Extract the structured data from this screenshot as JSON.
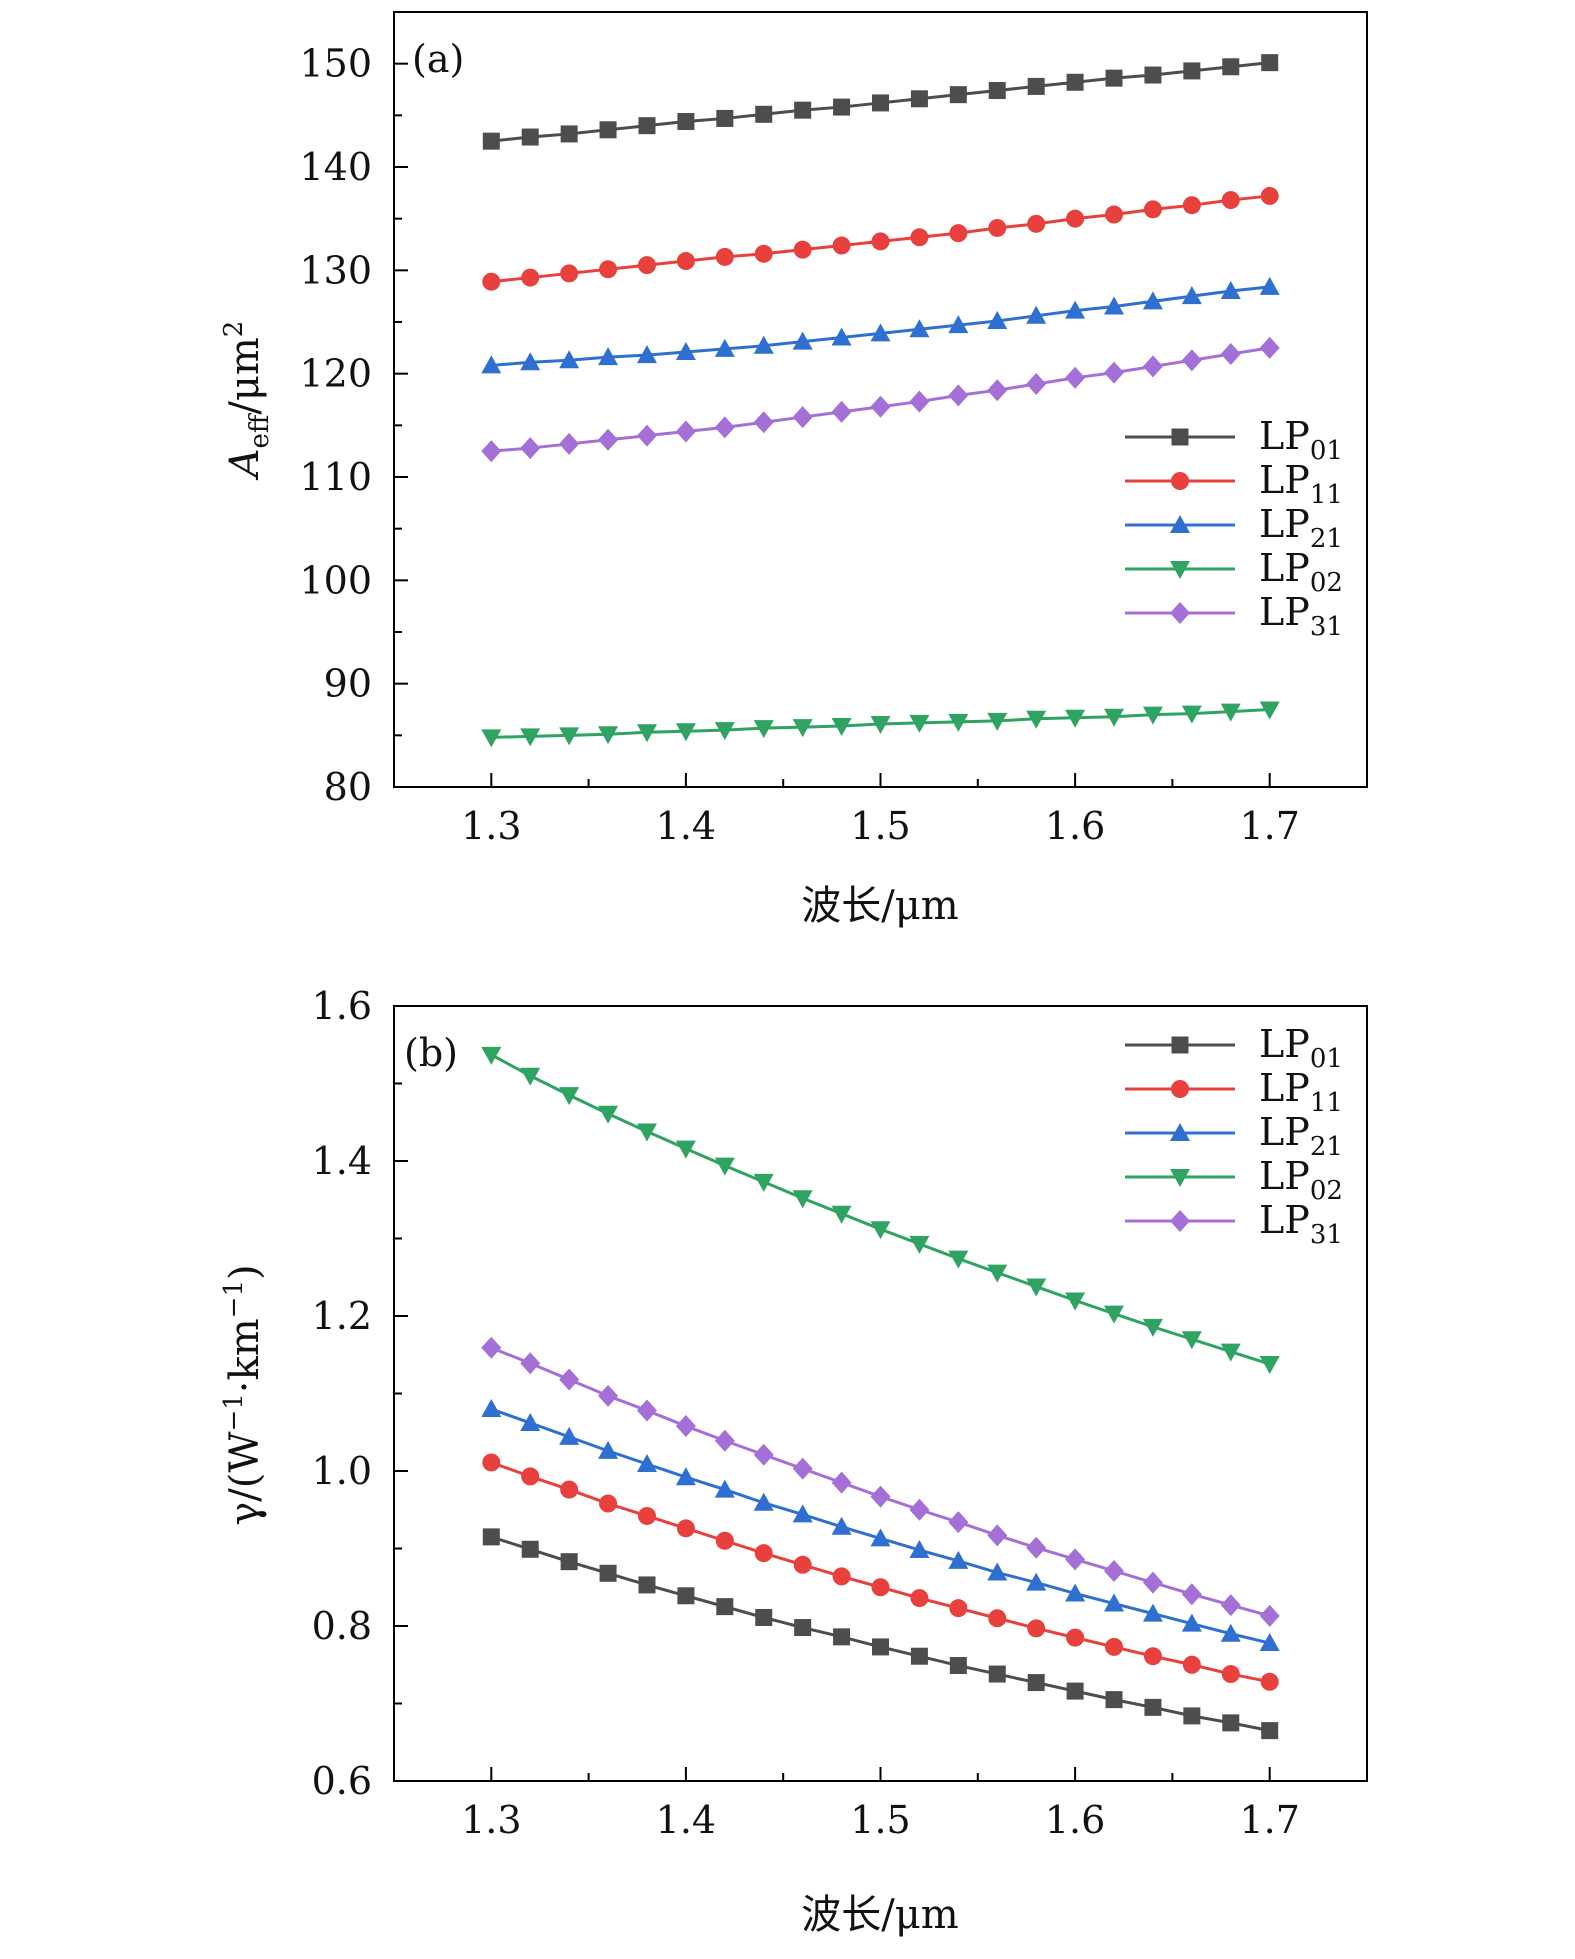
{
  "chart_data": [
    {
      "type": "line",
      "panel_label": "(a)",
      "xlabel": "波长/μm",
      "ylabel_main": "A",
      "ylabel_sub": "eff",
      "ylabel_tail": "/μm",
      "ylabel_sup": "2",
      "xlim": [
        1.25,
        1.75
      ],
      "ylim": [
        80,
        155
      ],
      "xticks": [
        "1.3",
        "1.4",
        "1.5",
        "1.6",
        "1.7"
      ],
      "xtick_values": [
        1.3,
        1.4,
        1.5,
        1.6,
        1.7
      ],
      "yticks": [
        "80",
        "90",
        "100",
        "110",
        "120",
        "130",
        "140",
        "150"
      ],
      "ytick_values": [
        80,
        90,
        100,
        110,
        120,
        130,
        140,
        150
      ],
      "legend_position": "right-middle",
      "x": [
        1.3,
        1.32,
        1.34,
        1.36,
        1.38,
        1.4,
        1.42,
        1.44,
        1.46,
        1.48,
        1.5,
        1.52,
        1.54,
        1.56,
        1.58,
        1.6,
        1.62,
        1.64,
        1.66,
        1.68,
        1.7
      ],
      "series": [
        {
          "name": "LP",
          "sub": "01",
          "color": "#4d4d4d",
          "marker": "square",
          "values": [
            142.5,
            142.9,
            143.2,
            143.6,
            144.0,
            144.4,
            144.7,
            145.1,
            145.5,
            145.8,
            146.2,
            146.6,
            147.0,
            147.4,
            147.8,
            148.2,
            148.6,
            148.9,
            149.3,
            149.7,
            150.1
          ]
        },
        {
          "name": "LP",
          "sub": "11",
          "color": "#e8403c",
          "marker": "circle",
          "values": [
            128.9,
            129.3,
            129.7,
            130.1,
            130.5,
            130.9,
            131.3,
            131.6,
            132.0,
            132.4,
            132.8,
            133.2,
            133.6,
            134.1,
            134.5,
            135.0,
            135.4,
            135.9,
            136.3,
            136.8,
            137.2
          ]
        },
        {
          "name": "LP",
          "sub": "21",
          "color": "#2f6fd1",
          "marker": "triangle-up",
          "values": [
            120.8,
            121.1,
            121.3,
            121.6,
            121.8,
            122.1,
            122.4,
            122.7,
            123.1,
            123.5,
            123.9,
            124.3,
            124.7,
            125.1,
            125.6,
            126.1,
            126.5,
            127.0,
            127.5,
            128.0,
            128.4
          ]
        },
        {
          "name": "LP",
          "sub": "02",
          "color": "#2fa362",
          "marker": "triangle-down",
          "values": [
            84.8,
            84.9,
            85.0,
            85.1,
            85.3,
            85.4,
            85.5,
            85.7,
            85.8,
            85.9,
            86.1,
            86.2,
            86.3,
            86.4,
            86.6,
            86.7,
            86.8,
            87.0,
            87.1,
            87.3,
            87.5
          ]
        },
        {
          "name": "LP",
          "sub": "31",
          "color": "#a46fd6",
          "marker": "diamond",
          "values": [
            112.5,
            112.8,
            113.2,
            113.6,
            114.0,
            114.4,
            114.8,
            115.3,
            115.8,
            116.3,
            116.8,
            117.3,
            117.9,
            118.4,
            119.0,
            119.6,
            120.1,
            120.7,
            121.3,
            121.9,
            122.5
          ]
        }
      ]
    },
    {
      "type": "line",
      "panel_label": "(b)",
      "xlabel": "波长/μm",
      "ylabel_main": "γ/(W",
      "ylabel_sup1": "−1",
      "ylabel_mid": "·km",
      "ylabel_sup2": "−1",
      "ylabel_tail": ")",
      "xlim": [
        1.25,
        1.75
      ],
      "ylim": [
        0.6,
        1.6
      ],
      "xticks": [
        "1.3",
        "1.4",
        "1.5",
        "1.6",
        "1.7"
      ],
      "xtick_values": [
        1.3,
        1.4,
        1.5,
        1.6,
        1.7
      ],
      "yticks": [
        "0.6",
        "0.8",
        "1.0",
        "1.2",
        "1.4",
        "1.6"
      ],
      "ytick_values": [
        0.6,
        0.8,
        1.0,
        1.2,
        1.4,
        1.6
      ],
      "legend_position": "top-right",
      "x": [
        1.3,
        1.32,
        1.34,
        1.36,
        1.38,
        1.4,
        1.42,
        1.44,
        1.46,
        1.48,
        1.5,
        1.52,
        1.54,
        1.56,
        1.58,
        1.6,
        1.62,
        1.64,
        1.66,
        1.68,
        1.7
      ],
      "series": [
        {
          "name": "LP",
          "sub": "01",
          "color": "#4d4d4d",
          "marker": "square",
          "values": [
            0.915,
            0.899,
            0.883,
            0.868,
            0.853,
            0.839,
            0.825,
            0.811,
            0.798,
            0.786,
            0.773,
            0.761,
            0.749,
            0.738,
            0.727,
            0.716,
            0.705,
            0.695,
            0.684,
            0.675,
            0.665
          ]
        },
        {
          "name": "LP",
          "sub": "11",
          "color": "#e8403c",
          "marker": "circle",
          "values": [
            1.011,
            0.993,
            0.976,
            0.958,
            0.942,
            0.926,
            0.91,
            0.894,
            0.879,
            0.864,
            0.85,
            0.836,
            0.823,
            0.81,
            0.797,
            0.785,
            0.773,
            0.761,
            0.75,
            0.738,
            0.728
          ]
        },
        {
          "name": "LP",
          "sub": "21",
          "color": "#2f6fd1",
          "marker": "triangle-up",
          "values": [
            1.08,
            1.062,
            1.044,
            1.026,
            1.009,
            0.992,
            0.976,
            0.959,
            0.944,
            0.928,
            0.913,
            0.898,
            0.884,
            0.869,
            0.856,
            0.842,
            0.829,
            0.816,
            0.803,
            0.79,
            0.778
          ]
        },
        {
          "name": "LP",
          "sub": "02",
          "color": "#2fa362",
          "marker": "triangle-down",
          "values": [
            1.537,
            1.51,
            1.485,
            1.461,
            1.438,
            1.416,
            1.394,
            1.373,
            1.352,
            1.332,
            1.312,
            1.293,
            1.274,
            1.256,
            1.238,
            1.22,
            1.203,
            1.186,
            1.17,
            1.154,
            1.138
          ]
        },
        {
          "name": "LP",
          "sub": "31",
          "color": "#a46fd6",
          "marker": "diamond",
          "values": [
            1.159,
            1.139,
            1.118,
            1.097,
            1.078,
            1.058,
            1.039,
            1.021,
            1.003,
            0.985,
            0.967,
            0.95,
            0.934,
            0.917,
            0.901,
            0.886,
            0.871,
            0.856,
            0.841,
            0.827,
            0.813
          ]
        }
      ]
    }
  ]
}
